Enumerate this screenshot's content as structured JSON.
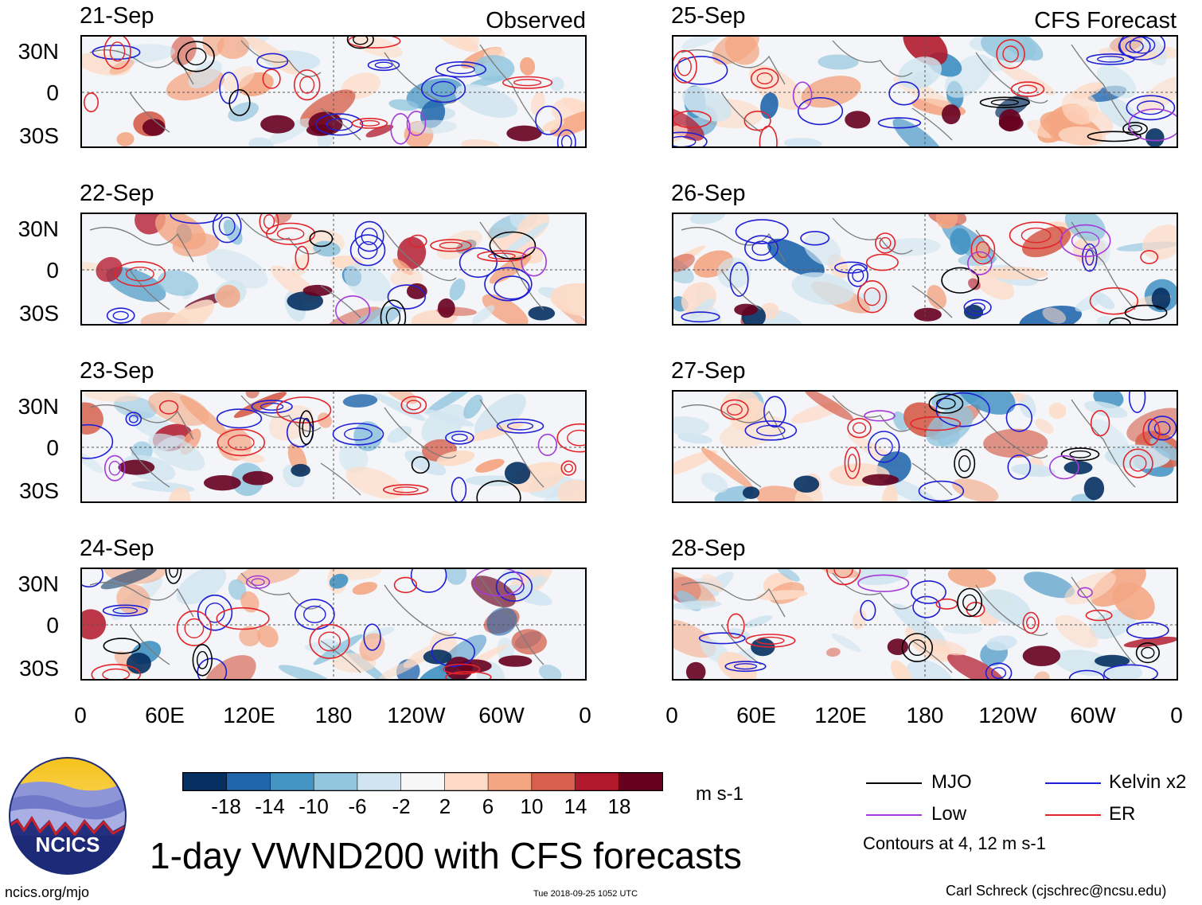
{
  "title": "1-day VWND200 with CFS forecasts",
  "columns": {
    "left_tag": "Observed",
    "right_tag": "CFS Forecast"
  },
  "panels": {
    "left": [
      "21-Sep",
      "22-Sep",
      "23-Sep",
      "24-Sep"
    ],
    "right": [
      "25-Sep",
      "26-Sep",
      "27-Sep",
      "28-Sep"
    ]
  },
  "lat_labels": [
    "30N",
    "0",
    "30S"
  ],
  "lon_labels": [
    "0",
    "60E",
    "120E",
    "180",
    "120W",
    "60W",
    "0"
  ],
  "colorbar": {
    "labels": [
      "-18",
      "-14",
      "-10",
      "-6",
      "-2",
      "2",
      "6",
      "10",
      "14",
      "18"
    ],
    "colors": [
      "#053061",
      "#2166ac",
      "#4393c3",
      "#92c5de",
      "#d1e5f0",
      "#f7f7f7",
      "#fddbc7",
      "#f4a582",
      "#d6604d",
      "#b2182b",
      "#67001f"
    ],
    "unit": "m s-1"
  },
  "legend": {
    "mjo": "MJO",
    "kelvin": "Kelvin x2",
    "low": "Low",
    "er": "ER",
    "colors": {
      "mjo": "#000000",
      "kelvin": "#1f1fd6",
      "low": "#a43ad9",
      "er": "#e3242b"
    },
    "note": "Contours at 4, 12 m s-1"
  },
  "logo": {
    "text": "NCICS"
  },
  "footer": {
    "url": "ncics.org/mjo",
    "timestamp": "Tue 2018-09-25 1052 UTC",
    "credit": "Carl Schreck (cjschrec@ncsu.edu)"
  }
}
